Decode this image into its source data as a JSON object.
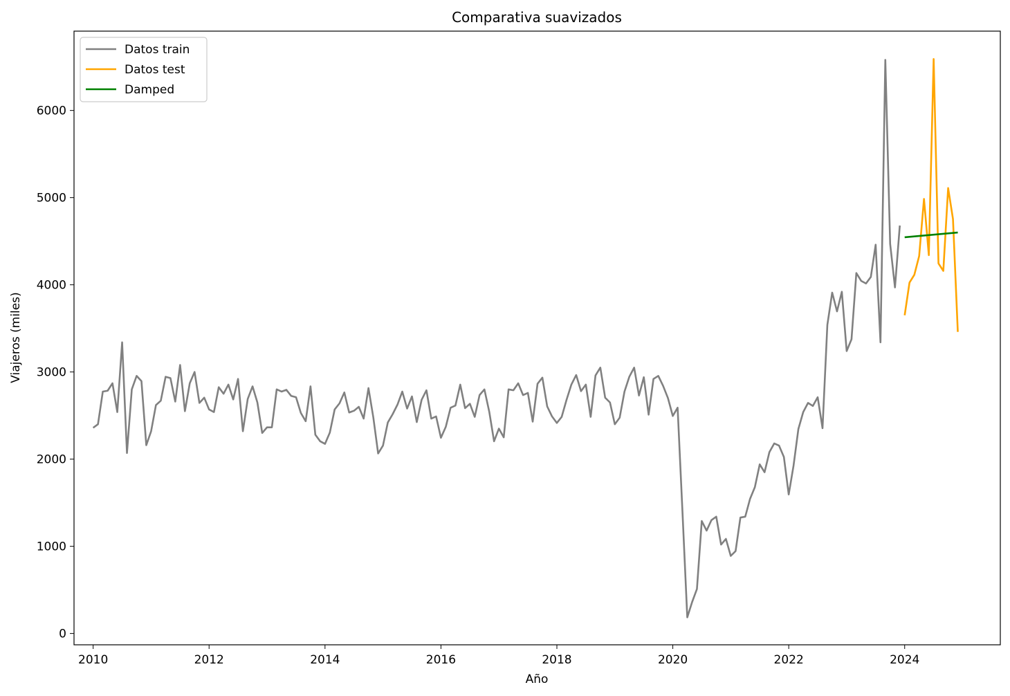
{
  "chart_data": {
    "type": "line",
    "title": "Comparativa suavizados",
    "xlabel": "Año",
    "ylabel": "Viajeros (miles)",
    "xlim": [
      2009.67,
      2025.65
    ],
    "ylim": [
      -130,
      6910
    ],
    "x_ticks": [
      2010,
      2012,
      2014,
      2016,
      2018,
      2020,
      2022,
      2024
    ],
    "y_ticks": [
      0,
      1000,
      2000,
      3000,
      4000,
      5000,
      6000
    ],
    "grid": false,
    "legend": "upper left",
    "series": [
      {
        "name": "Datos train",
        "color": "#808080",
        "x_start": 2010.0,
        "x_step": 0.08333,
        "values": [
          2360,
          2400,
          2775,
          2785,
          2870,
          2540,
          3340,
          2070,
          2800,
          2955,
          2895,
          2160,
          2320,
          2620,
          2670,
          2945,
          2930,
          2660,
          3080,
          2550,
          2870,
          3000,
          2645,
          2705,
          2570,
          2540,
          2825,
          2750,
          2855,
          2685,
          2920,
          2320,
          2690,
          2835,
          2650,
          2300,
          2365,
          2365,
          2800,
          2775,
          2795,
          2725,
          2710,
          2530,
          2435,
          2835,
          2280,
          2205,
          2175,
          2305,
          2570,
          2640,
          2765,
          2535,
          2555,
          2600,
          2465,
          2815,
          2480,
          2065,
          2155,
          2420,
          2515,
          2625,
          2775,
          2580,
          2720,
          2425,
          2680,
          2790,
          2465,
          2490,
          2245,
          2370,
          2590,
          2615,
          2855,
          2585,
          2635,
          2485,
          2735,
          2800,
          2545,
          2205,
          2350,
          2250,
          2800,
          2790,
          2870,
          2735,
          2760,
          2430,
          2865,
          2935,
          2605,
          2490,
          2415,
          2485,
          2680,
          2855,
          2965,
          2780,
          2855,
          2485,
          2960,
          3050,
          2705,
          2650,
          2400,
          2475,
          2775,
          2945,
          3050,
          2730,
          2940,
          2510,
          2920,
          2955,
          2840,
          2700,
          2495,
          2590,
          1400,
          185,
          360,
          510,
          1290,
          1180,
          1300,
          1340,
          1020,
          1085,
          890,
          945,
          1330,
          1340,
          1545,
          1680,
          1940,
          1850,
          2080,
          2180,
          2155,
          2025,
          1595,
          1925,
          2345,
          2540,
          2645,
          2610,
          2710,
          2355,
          3540,
          3910,
          3695,
          3920,
          3240,
          3375,
          4135,
          4045,
          4015,
          4090,
          4460,
          3340,
          6580,
          4470,
          3970,
          4680
        ]
      },
      {
        "name": "Datos test",
        "color": "#FFA500",
        "x_start": 2024.0,
        "x_step": 0.08333,
        "values": [
          3650,
          4025,
          4115,
          4330,
          4985,
          4340,
          6590,
          4245,
          4160,
          5110,
          4755,
          3460
        ]
      },
      {
        "name": "Damped",
        "color": "#008000",
        "x_start": 2024.0,
        "x_step": 0.08333,
        "values": [
          4545,
          4550,
          4555,
          4560,
          4565,
          4570,
          4575,
          4580,
          4585,
          4590,
          4595,
          4600
        ]
      }
    ]
  }
}
